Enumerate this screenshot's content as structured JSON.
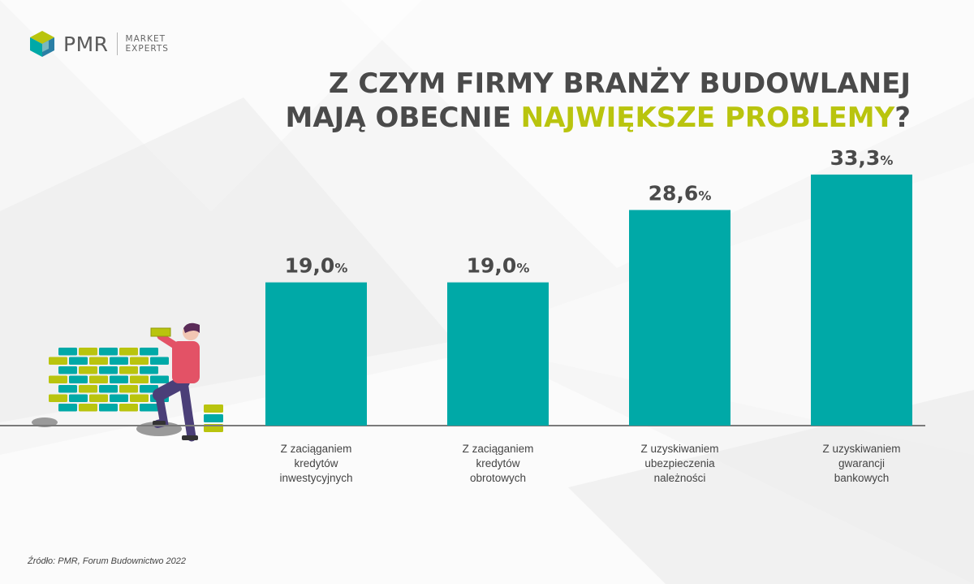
{
  "brand": {
    "name": "PMR",
    "tagline_line1": "MARKET",
    "tagline_line2": "EXPERTS"
  },
  "title": {
    "line1": "Z CZYM FIRMY BRANŻY BUDOWLANEJ",
    "line2_prefix": "MAJĄ OBECNIE ",
    "line2_highlight": "NAJWIĘKSZE PROBLEMY",
    "line2_suffix": "?"
  },
  "source": "Źródło: PMR, Forum Budownictwo 2022",
  "colors": {
    "bar": "#00a9a7",
    "highlight": "#b9c40e",
    "text": "#4a4a4a",
    "axis": "#7a7a7a"
  },
  "chart_data": {
    "type": "bar",
    "categories": [
      [
        "Z zaciąganiem",
        "kredytów",
        "inwestycyjnych"
      ],
      [
        "Z zaciąganiem",
        "kredytów",
        "obrotowych"
      ],
      [
        "Z uzyskiwaniem",
        "ubezpieczenia",
        "należności"
      ],
      [
        "Z uzyskiwaniem",
        "gwarancji",
        "bankowych"
      ]
    ],
    "values": [
      19.0,
      19.0,
      28.6,
      33.3
    ],
    "value_labels": [
      "19,0",
      "19,0",
      "28,6",
      "33,3"
    ],
    "unit": "%",
    "ylim": [
      0,
      37.6
    ],
    "grid": false,
    "legend": "none"
  }
}
